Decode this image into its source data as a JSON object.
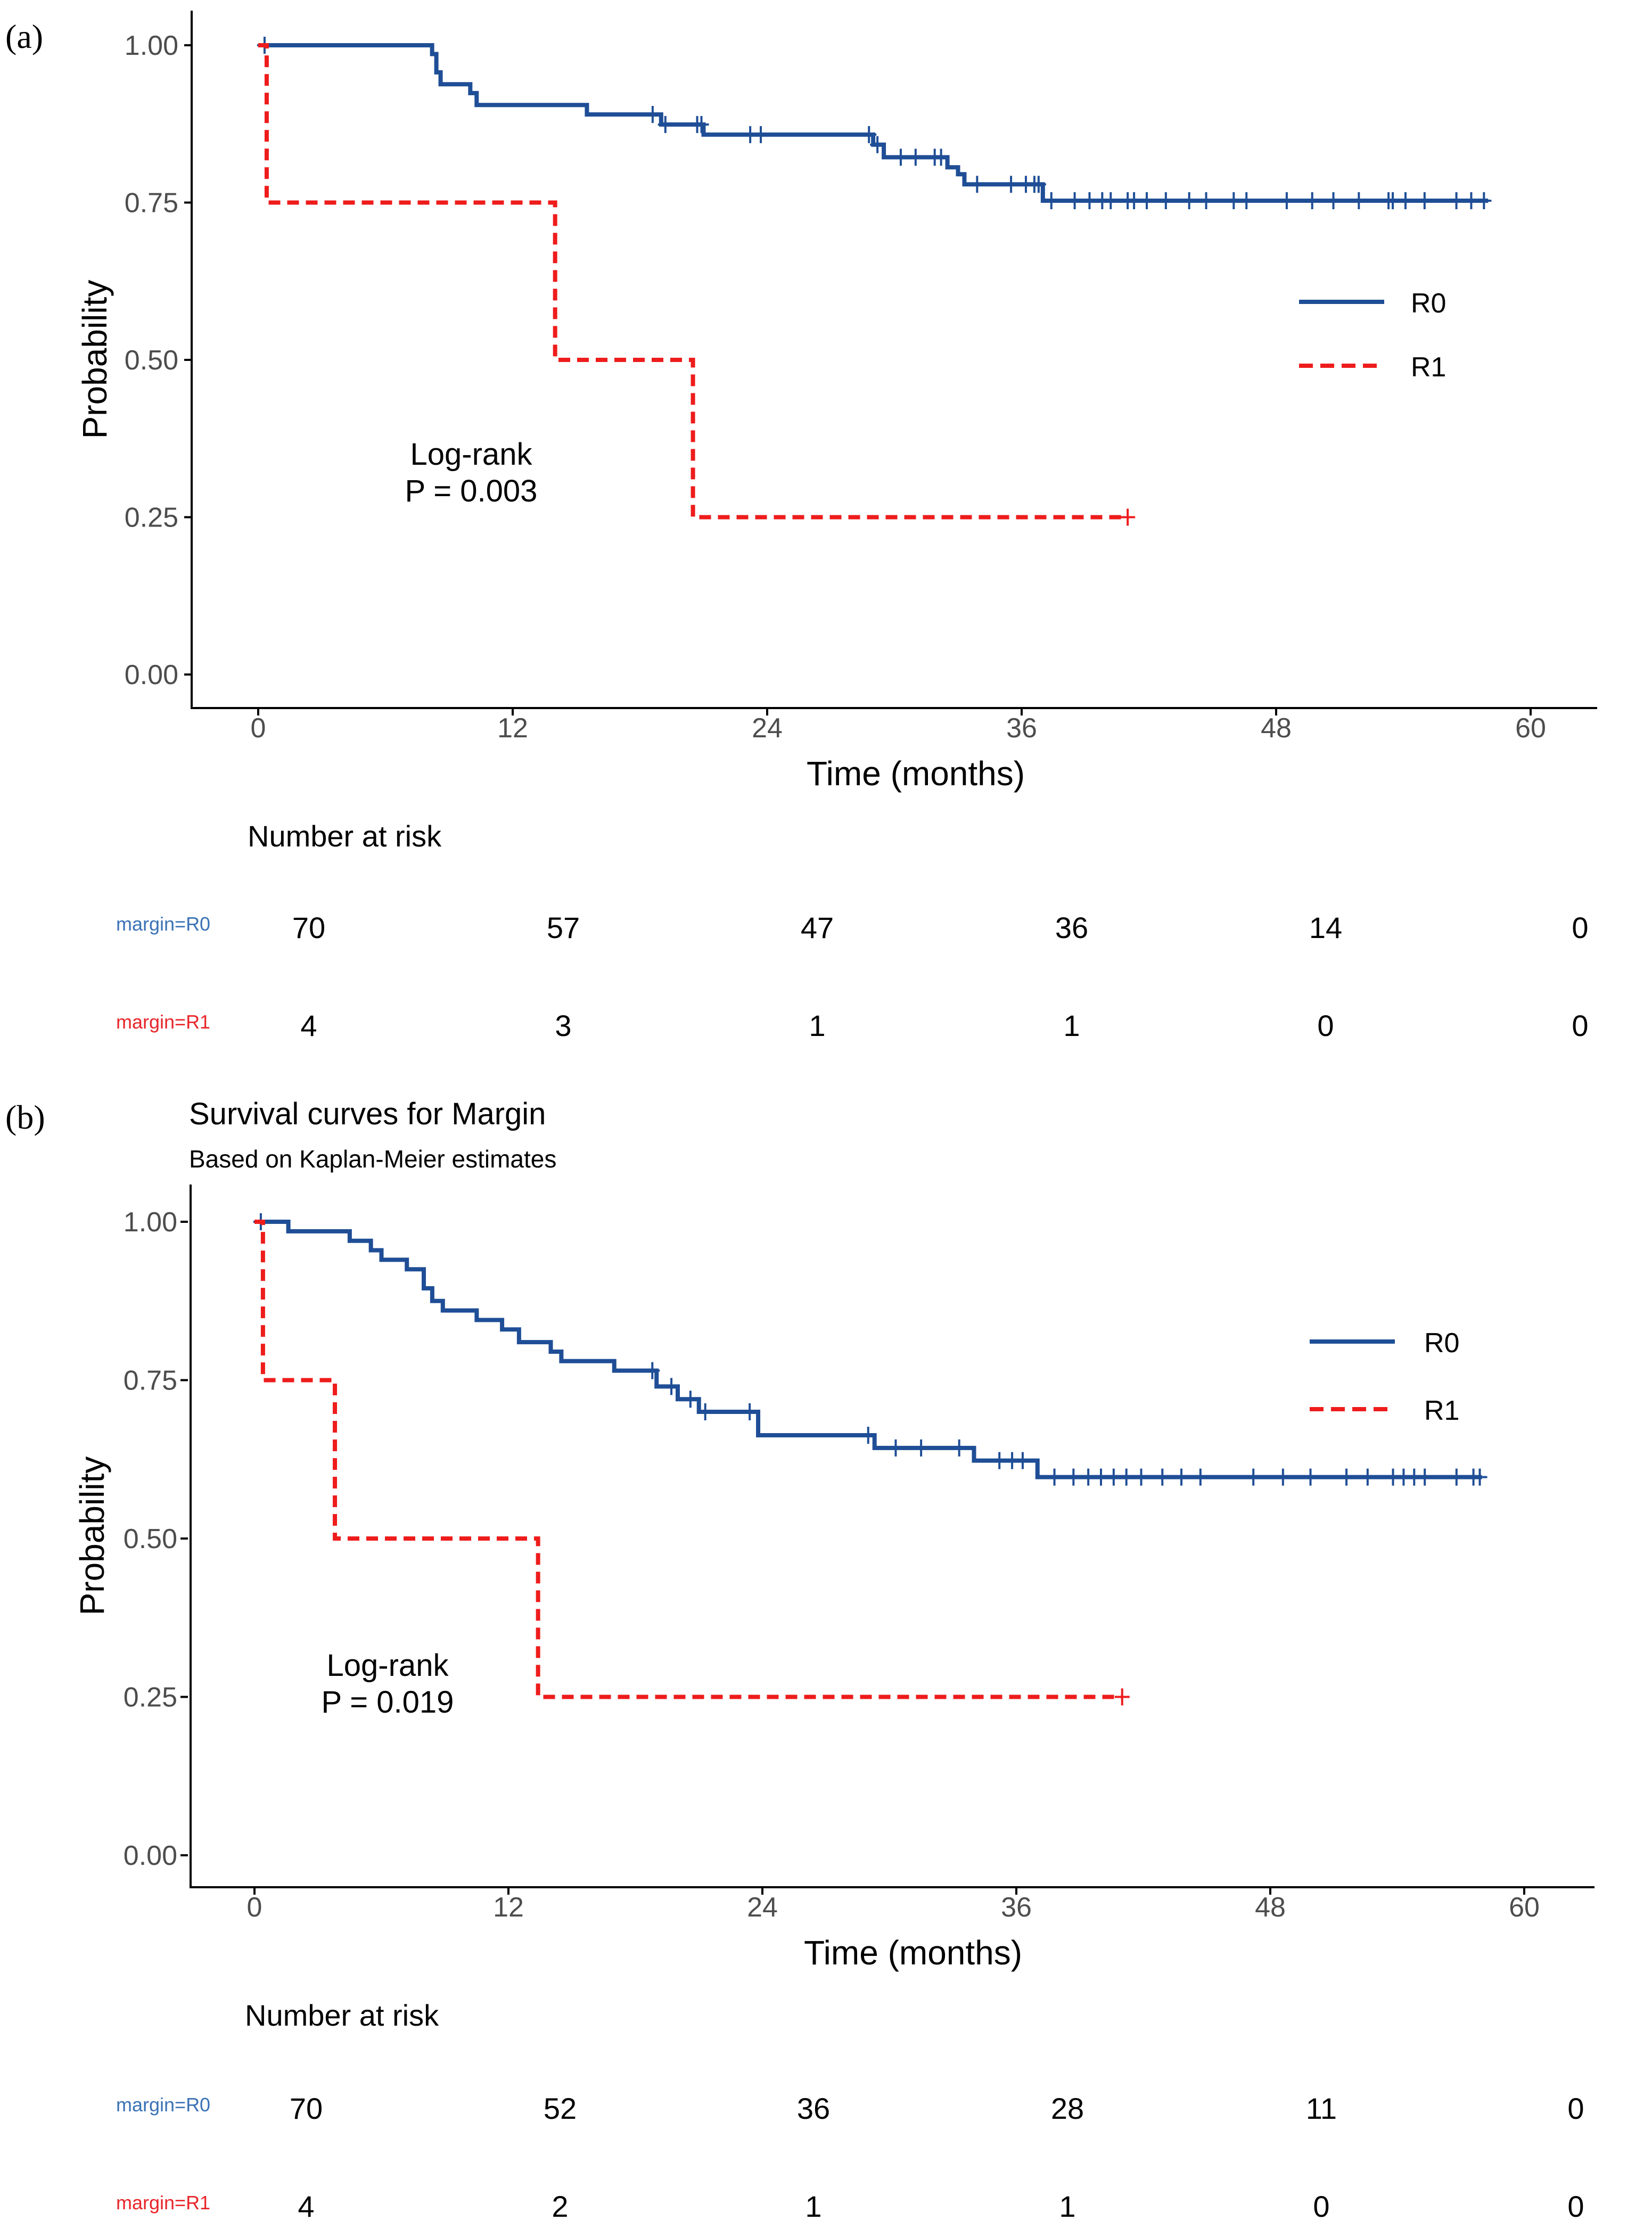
{
  "colors": {
    "r0": "#1f4e96",
    "r1": "#ee1c1c",
    "strata_r0": "#3a72b5",
    "strata_r1": "#e8252a",
    "axis": "#000000",
    "tick_text": "#4d4d4d"
  },
  "chart_data": [
    {
      "type": "line",
      "panel_label": "(a)",
      "title": "",
      "subtitle": "",
      "xlabel": "Time (months)",
      "ylabel": "Probability",
      "xlim": [
        0,
        60
      ],
      "ylim": [
        0,
        1
      ],
      "xticks": [
        "0",
        "12",
        "24",
        "36",
        "48",
        "60"
      ],
      "yticks": [
        "0.00",
        "0.25",
        "0.50",
        "0.75",
        "1.00"
      ],
      "legend_position": "right",
      "annotation": [
        "Log-rank",
        "P = 0.003"
      ],
      "grid": false,
      "series": [
        {
          "name": "R0",
          "style": "solid",
          "steps": [
            [
              0,
              1.0
            ],
            [
              8.2,
              0.986
            ],
            [
              8.4,
              0.957
            ],
            [
              8.6,
              0.938
            ],
            [
              10.0,
              0.924
            ],
            [
              10.3,
              0.905
            ],
            [
              15.5,
              0.89
            ],
            [
              19.0,
              0.874
            ],
            [
              21.0,
              0.858
            ],
            [
              29.0,
              0.842
            ],
            [
              29.5,
              0.822
            ],
            [
              32.5,
              0.806
            ],
            [
              33.0,
              0.795
            ],
            [
              33.3,
              0.779
            ],
            [
              37.0,
              0.753
            ]
          ],
          "end": 58.0,
          "censor": [
            0.3,
            18.6,
            19.2,
            20.7,
            20.9,
            23.2,
            23.7,
            28.8,
            29.2,
            30.3,
            31.0,
            31.9,
            32.2,
            33.9,
            35.5,
            36.2,
            36.6,
            36.8,
            37.4,
            38.5,
            39.2,
            39.8,
            40.2,
            41.0,
            41.3,
            41.9,
            42.8,
            43.9,
            44.7,
            46.0,
            46.6,
            48.5,
            49.7,
            50.7,
            51.9,
            53.3,
            53.5,
            54.1,
            55.0,
            56.5,
            57.2,
            57.8
          ]
        },
        {
          "name": "R1",
          "style": "dashed",
          "steps": [
            [
              0,
              1.0
            ],
            [
              0.4,
              0.75
            ],
            [
              14.0,
              0.5
            ],
            [
              20.5,
              0.25
            ]
          ],
          "end": 41.0,
          "censor": [
            41.0
          ]
        }
      ],
      "risk_table": {
        "title": "Number at risk",
        "times": [
          0,
          12,
          24,
          36,
          48,
          60
        ],
        "rows": [
          {
            "label": "margin=R0",
            "values": [
              "70",
              "57",
              "47",
              "36",
              "14",
              "0"
            ]
          },
          {
            "label": "margin=R1",
            "values": [
              "4",
              "3",
              "1",
              "1",
              "0",
              "0"
            ]
          }
        ]
      }
    },
    {
      "type": "line",
      "panel_label": "(b)",
      "title": "Survival curves for Margin",
      "subtitle": "Based on Kaplan-Meier estimates",
      "xlabel": "Time (months)",
      "ylabel": "Probability",
      "xlim": [
        0,
        60
      ],
      "ylim": [
        0,
        1
      ],
      "xticks": [
        "0",
        "12",
        "24",
        "36",
        "48",
        "60"
      ],
      "yticks": [
        "0.00",
        "0.25",
        "0.50",
        "0.75",
        "1.00"
      ],
      "legend_position": "right",
      "annotation": [
        "Log-rank",
        "P = 0.019"
      ],
      "grid": false,
      "series": [
        {
          "name": "R0",
          "style": "solid",
          "steps": [
            [
              0,
              1.0
            ],
            [
              1.6,
              0.985
            ],
            [
              4.5,
              0.97
            ],
            [
              5.5,
              0.955
            ],
            [
              6.0,
              0.94
            ],
            [
              7.2,
              0.925
            ],
            [
              8.0,
              0.895
            ],
            [
              8.4,
              0.875
            ],
            [
              8.9,
              0.86
            ],
            [
              10.5,
              0.845
            ],
            [
              11.7,
              0.83
            ],
            [
              12.5,
              0.81
            ],
            [
              14.0,
              0.795
            ],
            [
              14.5,
              0.78
            ],
            [
              17.0,
              0.765
            ],
            [
              19.0,
              0.74
            ],
            [
              20.0,
              0.72
            ],
            [
              21.0,
              0.7
            ],
            [
              23.8,
              0.663
            ],
            [
              29.3,
              0.643
            ],
            [
              34.0,
              0.623
            ],
            [
              37.0,
              0.597
            ]
          ],
          "end": 58.0,
          "censor": [
            0.3,
            18.8,
            19.7,
            20.6,
            21.3,
            23.4,
            29.0,
            30.3,
            31.5,
            33.3,
            35.2,
            35.8,
            36.3,
            37.8,
            38.7,
            39.4,
            40.0,
            40.6,
            41.2,
            41.9,
            42.9,
            43.8,
            44.7,
            47.2,
            48.6,
            49.9,
            51.6,
            52.6,
            53.8,
            54.3,
            54.8,
            55.3,
            56.8,
            57.6,
            57.9
          ]
        },
        {
          "name": "R1",
          "style": "dashed",
          "steps": [
            [
              0,
              1.0
            ],
            [
              0.4,
              0.75
            ],
            [
              3.8,
              0.5
            ],
            [
              13.4,
              0.25
            ]
          ],
          "end": 41.0,
          "censor": [
            41.0
          ]
        }
      ],
      "risk_table": {
        "title": "Number at risk",
        "times": [
          0,
          12,
          24,
          36,
          48,
          60
        ],
        "rows": [
          {
            "label": "margin=R0",
            "values": [
              "70",
              "52",
              "36",
              "28",
              "11",
              "0"
            ]
          },
          {
            "label": "margin=R1",
            "values": [
              "4",
              "2",
              "1",
              "1",
              "0",
              "0"
            ]
          }
        ]
      }
    }
  ]
}
